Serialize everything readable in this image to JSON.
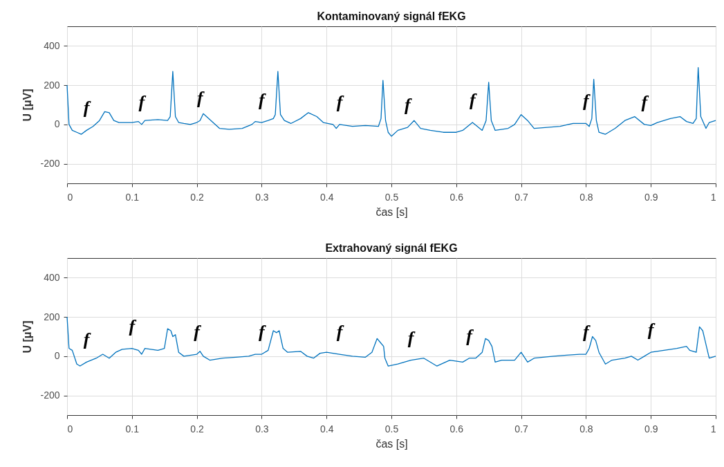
{
  "chart_data": [
    {
      "type": "line",
      "title": "Kontaminovaný signál fEKG",
      "xlabel": "čas [s]",
      "ylabel": "U [μV]",
      "xlim": [
        0,
        1
      ],
      "ylim": [
        -300,
        500
      ],
      "xticks": [
        0,
        0.1,
        0.2,
        0.3,
        0.4,
        0.5,
        0.6,
        0.7,
        0.8,
        0.9,
        1
      ],
      "yticks": [
        -200,
        0,
        200,
        400
      ],
      "grid": true,
      "line_style": "solid",
      "series": [
        {
          "color": "#0072bd",
          "x": [
            0,
            0.003,
            0.008,
            0.015,
            0.022,
            0.03,
            0.04,
            0.05,
            0.058,
            0.065,
            0.072,
            0.08,
            0.1,
            0.11,
            0.115,
            0.12,
            0.14,
            0.155,
            0.159,
            0.163,
            0.167,
            0.172,
            0.18,
            0.19,
            0.2,
            0.205,
            0.21,
            0.215,
            0.225,
            0.235,
            0.25,
            0.27,
            0.285,
            0.29,
            0.3,
            0.31,
            0.318,
            0.321,
            0.325,
            0.329,
            0.335,
            0.345,
            0.36,
            0.372,
            0.385,
            0.395,
            0.41,
            0.415,
            0.42,
            0.44,
            0.46,
            0.48,
            0.484,
            0.487,
            0.491,
            0.495,
            0.5,
            0.51,
            0.525,
            0.535,
            0.545,
            0.56,
            0.58,
            0.6,
            0.61,
            0.625,
            0.64,
            0.646,
            0.65,
            0.654,
            0.66,
            0.68,
            0.69,
            0.7,
            0.71,
            0.72,
            0.74,
            0.76,
            0.78,
            0.8,
            0.805,
            0.809,
            0.812,
            0.816,
            0.82,
            0.83,
            0.845,
            0.86,
            0.875,
            0.89,
            0.9,
            0.91,
            0.93,
            0.945,
            0.955,
            0.965,
            0.97,
            0.973,
            0.977,
            0.985,
            0.99,
            1
          ],
          "values": [
            200,
            0,
            -30,
            -40,
            -50,
            -30,
            -10,
            20,
            65,
            60,
            20,
            10,
            10,
            15,
            0,
            20,
            25,
            20,
            40,
            270,
            40,
            10,
            5,
            0,
            10,
            20,
            55,
            40,
            10,
            -20,
            -25,
            -20,
            0,
            15,
            10,
            20,
            30,
            50,
            270,
            50,
            20,
            5,
            30,
            60,
            40,
            10,
            0,
            -20,
            0,
            -10,
            -5,
            -10,
            30,
            225,
            20,
            -40,
            -60,
            -30,
            -15,
            20,
            -20,
            -30,
            -40,
            -40,
            -30,
            10,
            -30,
            20,
            215,
            20,
            -30,
            -20,
            0,
            50,
            20,
            -20,
            -15,
            -10,
            5,
            5,
            -10,
            30,
            230,
            20,
            -40,
            -50,
            -20,
            20,
            40,
            0,
            -5,
            10,
            30,
            40,
            15,
            5,
            30,
            290,
            40,
            -20,
            10,
            20
          ]
        }
      ],
      "annotations": [
        {
          "text": "f",
          "x": 0.03,
          "y": -30
        },
        {
          "text": "f",
          "x": 0.115,
          "y": 0
        },
        {
          "text": "f",
          "x": 0.205,
          "y": 20
        },
        {
          "text": "f",
          "x": 0.3,
          "y": 10
        },
        {
          "text": "f",
          "x": 0.42,
          "y": 0
        },
        {
          "text": "f",
          "x": 0.525,
          "y": -15
        },
        {
          "text": "f",
          "x": 0.625,
          "y": 10
        },
        {
          "text": "f",
          "x": 0.8,
          "y": 5
        },
        {
          "text": "f",
          "x": 0.89,
          "y": 0
        }
      ]
    },
    {
      "type": "line",
      "title": "Extrahovaný signál fEKG",
      "xlabel": "čas [s]",
      "ylabel": "U [μV]",
      "xlim": [
        0,
        1
      ],
      "ylim": [
        -300,
        500
      ],
      "xticks": [
        0,
        0.1,
        0.2,
        0.3,
        0.4,
        0.5,
        0.6,
        0.7,
        0.8,
        0.9,
        1
      ],
      "yticks": [
        -200,
        0,
        200,
        400
      ],
      "grid": true,
      "line_style": "solid",
      "series": [
        {
          "color": "#0072bd",
          "x": [
            0,
            0.003,
            0.008,
            0.015,
            0.02,
            0.03,
            0.045,
            0.055,
            0.065,
            0.075,
            0.085,
            0.1,
            0.11,
            0.115,
            0.12,
            0.14,
            0.15,
            0.155,
            0.16,
            0.163,
            0.167,
            0.172,
            0.18,
            0.2,
            0.205,
            0.21,
            0.22,
            0.24,
            0.26,
            0.28,
            0.29,
            0.3,
            0.31,
            0.318,
            0.323,
            0.327,
            0.333,
            0.34,
            0.36,
            0.37,
            0.38,
            0.39,
            0.4,
            0.42,
            0.44,
            0.46,
            0.47,
            0.478,
            0.483,
            0.488,
            0.49,
            0.495,
            0.51,
            0.53,
            0.55,
            0.57,
            0.59,
            0.61,
            0.62,
            0.63,
            0.64,
            0.645,
            0.65,
            0.655,
            0.66,
            0.67,
            0.69,
            0.7,
            0.71,
            0.72,
            0.75,
            0.77,
            0.79,
            0.8,
            0.805,
            0.81,
            0.815,
            0.82,
            0.83,
            0.84,
            0.86,
            0.87,
            0.88,
            0.89,
            0.9,
            0.92,
            0.94,
            0.955,
            0.96,
            0.97,
            0.975,
            0.98,
            0.985,
            0.99,
            1
          ],
          "values": [
            200,
            40,
            30,
            -40,
            -50,
            -30,
            -10,
            10,
            -10,
            20,
            35,
            40,
            30,
            10,
            40,
            30,
            40,
            140,
            130,
            100,
            110,
            20,
            0,
            10,
            25,
            0,
            -20,
            -10,
            -5,
            0,
            10,
            10,
            30,
            130,
            120,
            130,
            40,
            20,
            25,
            0,
            -10,
            15,
            20,
            10,
            0,
            -5,
            20,
            90,
            70,
            50,
            -10,
            -50,
            -40,
            -20,
            -10,
            -50,
            -20,
            -30,
            -10,
            -10,
            20,
            90,
            80,
            50,
            -30,
            -20,
            -20,
            20,
            -30,
            -10,
            0,
            5,
            10,
            10,
            40,
            100,
            80,
            20,
            -40,
            -20,
            -10,
            0,
            -20,
            0,
            20,
            30,
            40,
            50,
            30,
            20,
            150,
            130,
            60,
            -10,
            0
          ]
        }
      ],
      "annotations": [
        {
          "text": "f",
          "x": 0.03,
          "y": -30
        },
        {
          "text": "f",
          "x": 0.1,
          "y": 40
        },
        {
          "text": "f",
          "x": 0.2,
          "y": 10
        },
        {
          "text": "f",
          "x": 0.3,
          "y": 10
        },
        {
          "text": "f",
          "x": 0.42,
          "y": 10
        },
        {
          "text": "f",
          "x": 0.53,
          "y": -20
        },
        {
          "text": "f",
          "x": 0.62,
          "y": -10
        },
        {
          "text": "f",
          "x": 0.8,
          "y": 10
        },
        {
          "text": "f",
          "x": 0.9,
          "y": 20
        }
      ]
    }
  ]
}
